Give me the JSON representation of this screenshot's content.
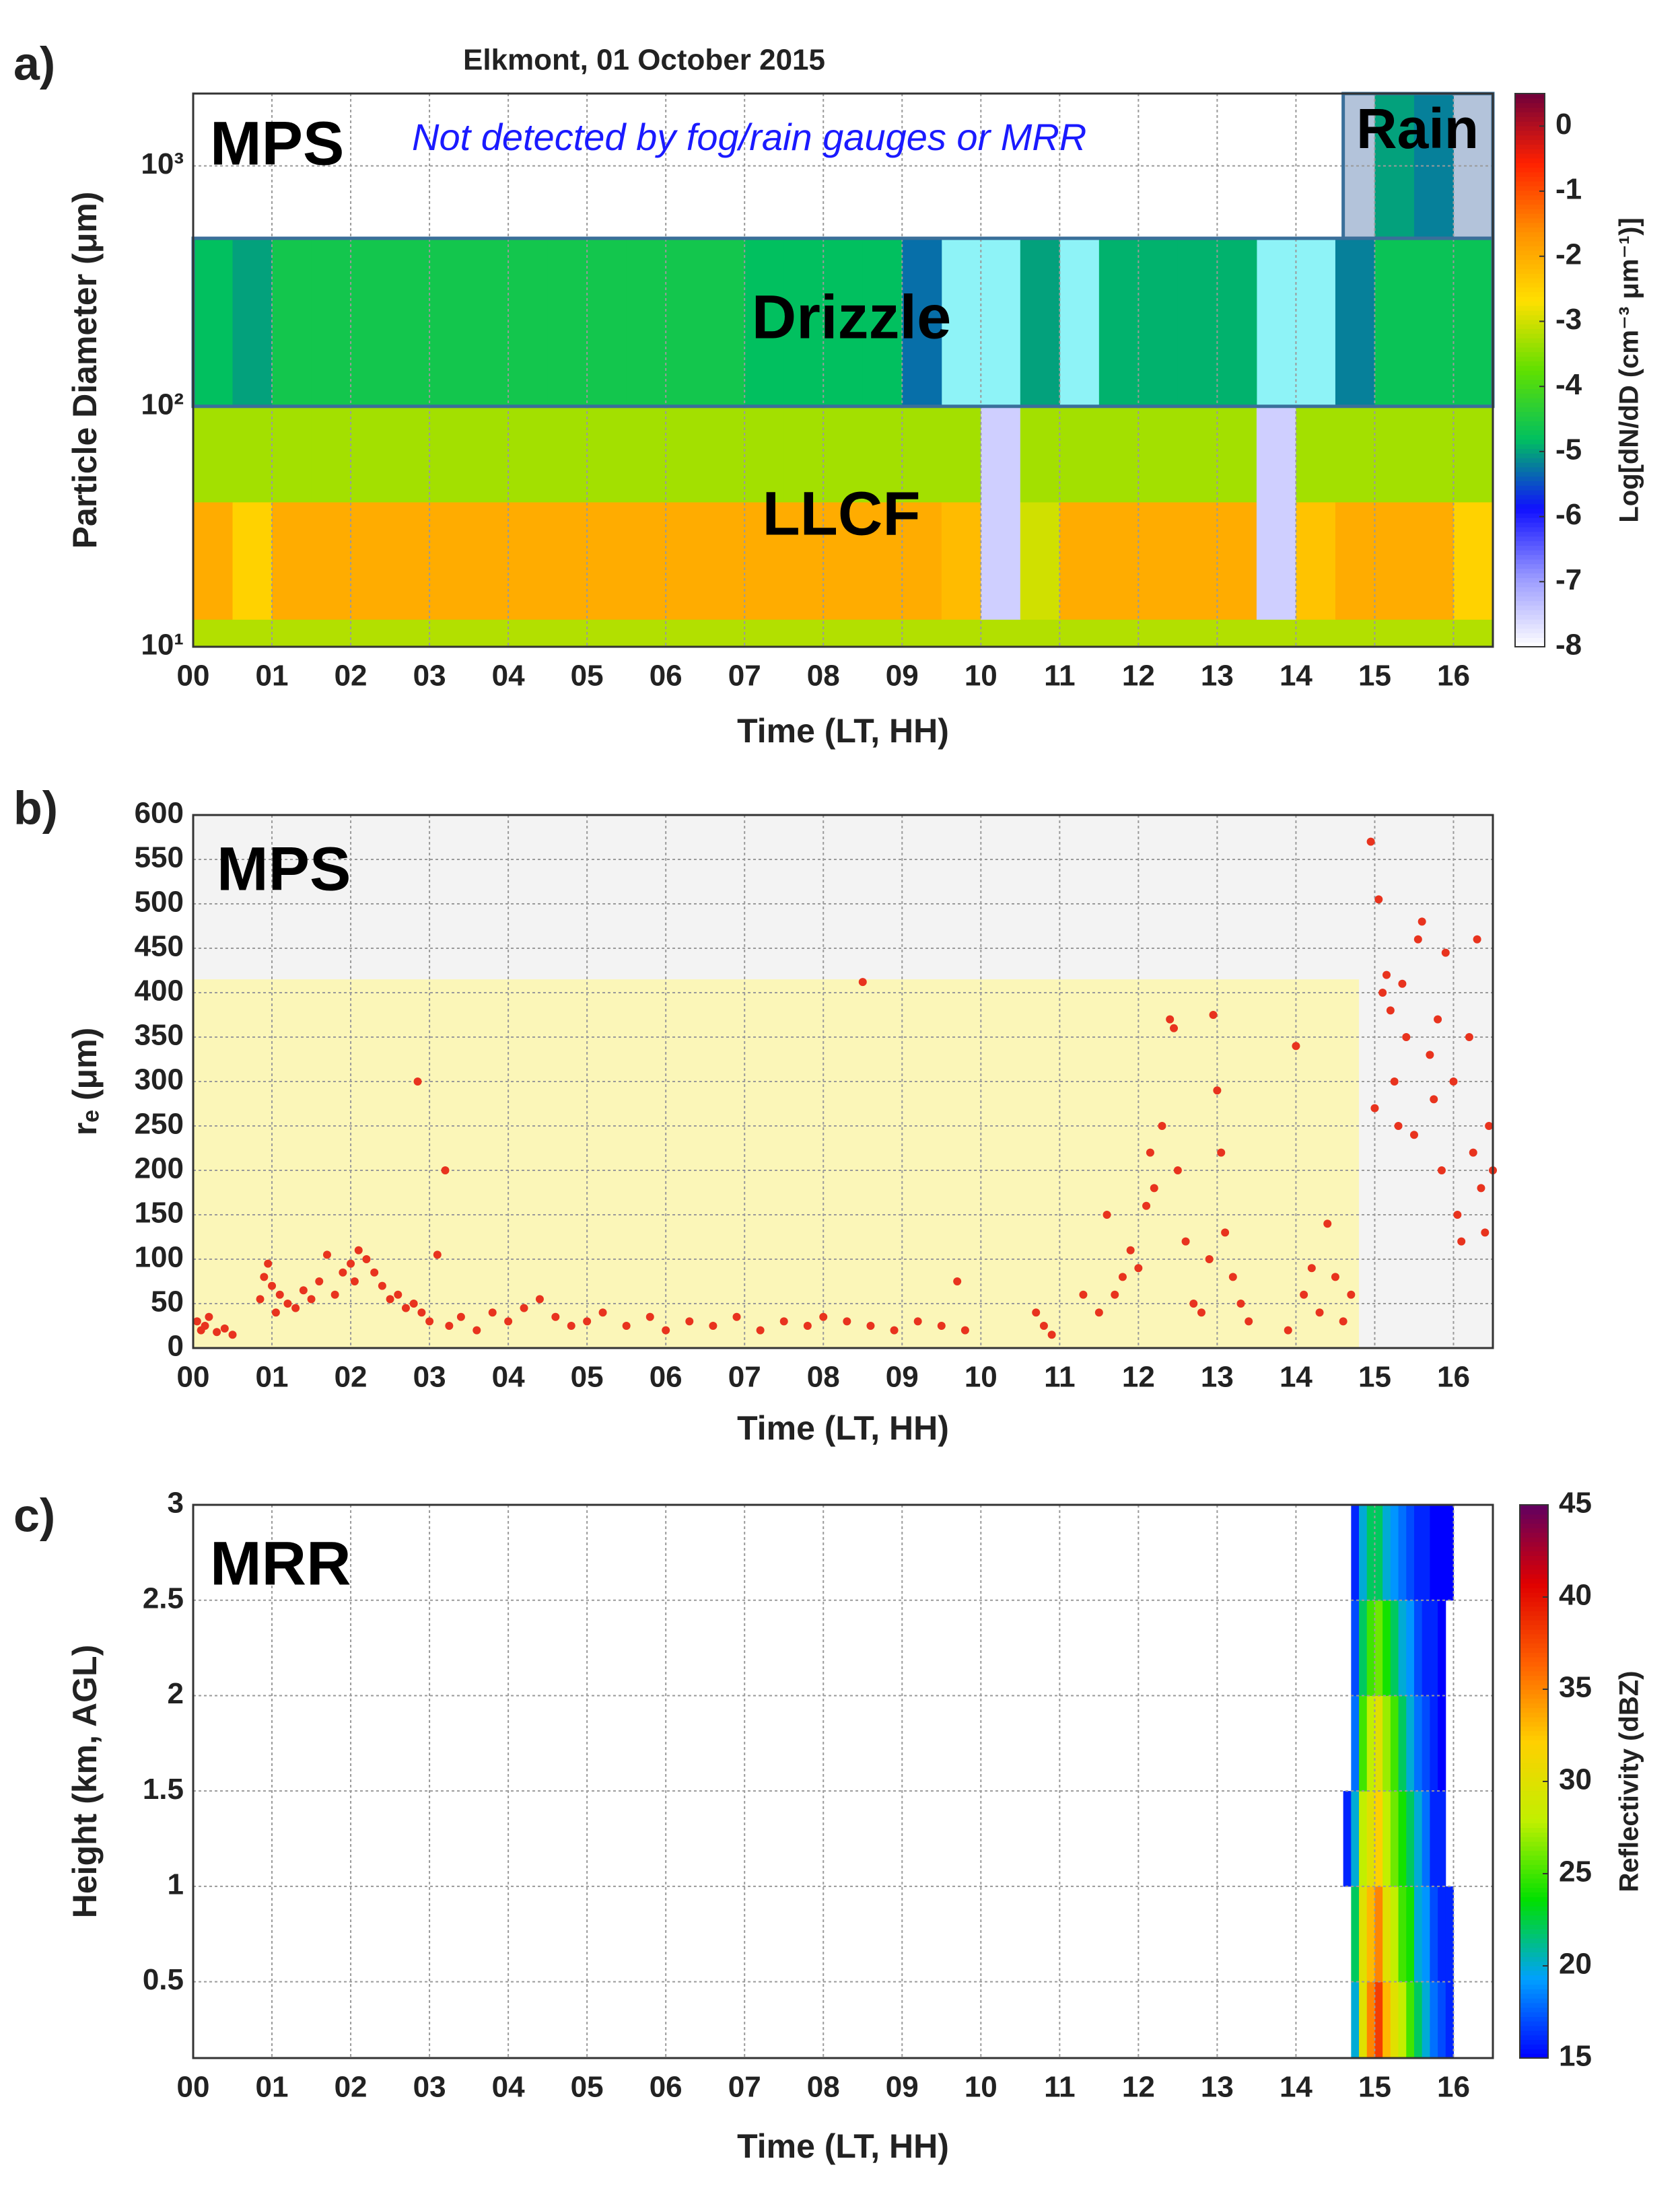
{
  "chart_data": [
    {
      "type": "heatmap",
      "title": "Elkmont, 01 October 2015",
      "panel_label": "a)",
      "ylabel": "Particle Diameter (μm)",
      "xlabel": "Time (LT, HH)",
      "annotations": [
        "MPS",
        "Not detected by fog/rain gauges or MRR",
        "Rain",
        "Drizzle",
        "LLCF"
      ],
      "xlim": [
        0,
        16.5
      ],
      "ylim": [
        10,
        2000
      ],
      "yscale": "log",
      "xticks": [
        {
          "value": 0,
          "label": "00"
        },
        {
          "value": 1,
          "label": "01"
        },
        {
          "value": 2,
          "label": "02"
        },
        {
          "value": 3,
          "label": "03"
        },
        {
          "value": 4,
          "label": "04"
        },
        {
          "value": 5,
          "label": "05"
        },
        {
          "value": 6,
          "label": "06"
        },
        {
          "value": 7,
          "label": "07"
        },
        {
          "value": 8,
          "label": "08"
        },
        {
          "value": 9,
          "label": "09"
        },
        10,
        11,
        12,
        13,
        14,
        15,
        16
      ],
      "yticks": [
        {
          "value": 10,
          "label": "10¹"
        },
        {
          "value": 100,
          "label": "10²"
        },
        {
          "value": 1000,
          "label": "10³"
        }
      ],
      "grid": true,
      "xbins": [
        0,
        0.5,
        1,
        1.5,
        2,
        2.5,
        3,
        3.5,
        4,
        4.5,
        5,
        5.5,
        6,
        6.5,
        7,
        7.5,
        8,
        8.5,
        9,
        9.5,
        10,
        10.5,
        11,
        11.5,
        12,
        12.5,
        13,
        13.5,
        14,
        14.5,
        15,
        15.5,
        16,
        16.5
      ],
      "ybins": [
        10,
        13,
        40,
        100,
        500,
        2000
      ],
      "values": [
        [
          -3.2,
          -3.2,
          -3.2,
          -3.2,
          -3.2,
          -3.2,
          -3.2,
          -3.2,
          -3.2,
          -3.2,
          -3.2,
          -3.2,
          -3.2,
          -3.2,
          -3.2,
          -3.2,
          -3.2,
          -3.2,
          -3.2,
          -3.2,
          -3.2,
          -3.2,
          -3.2,
          -3.2,
          -3.2,
          -3.2,
          -3.2,
          -3.2,
          -3.2,
          -3.2,
          -3.2,
          -3.2,
          -3.2
        ],
        [
          -2.0,
          -2.5,
          -2.0,
          -2.0,
          -2.0,
          -2.0,
          -2.0,
          -2.0,
          -2.0,
          -2.0,
          -2.0,
          -2.0,
          -2.0,
          -2.0,
          -2.0,
          -2.0,
          -2.0,
          -2.0,
          -2.0,
          -2.2,
          -7.5,
          -3.0,
          -2.0,
          -2.0,
          -2.0,
          -2.0,
          -2.0,
          -7.5,
          -2.3,
          -2.0,
          -2.0,
          -2.0,
          -2.5
        ],
        [
          -3.3,
          -3.3,
          -3.3,
          -3.3,
          -3.3,
          -3.3,
          -3.3,
          -3.3,
          -3.3,
          -3.3,
          -3.3,
          -3.3,
          -3.3,
          -3.3,
          -3.3,
          -3.3,
          -3.3,
          -3.3,
          -3.3,
          -3.3,
          -7.5,
          -3.3,
          -3.3,
          -3.3,
          -3.3,
          -3.3,
          -3.3,
          -7.5,
          -3.3,
          -3.3,
          -3.3,
          -3.3,
          -3.3
        ],
        [
          -4.8,
          -5.0,
          -4.6,
          -4.6,
          -4.6,
          -4.6,
          -4.6,
          -4.6,
          -4.6,
          -4.6,
          -4.6,
          -4.6,
          -4.6,
          -4.6,
          -4.8,
          -4.8,
          -4.8,
          -4.8,
          -5.3,
          null,
          null,
          -5.0,
          null,
          -4.9,
          -4.9,
          -4.9,
          -4.9,
          null,
          null,
          -5.2,
          -4.7,
          -4.7,
          -4.7
        ],
        [
          null,
          null,
          null,
          null,
          null,
          null,
          null,
          null,
          null,
          null,
          null,
          null,
          null,
          null,
          null,
          null,
          null,
          null,
          null,
          null,
          null,
          null,
          null,
          null,
          null,
          null,
          null,
          null,
          null,
          null,
          -5.0,
          -5.2,
          null
        ]
      ],
      "regions": [
        {
          "x": [
            0,
            16.5
          ],
          "y": [
            100,
            500
          ],
          "color": "#8ef3f7"
        },
        {
          "x": [
            14.6,
            16.5
          ],
          "y": [
            500,
            2000
          ],
          "color": "#b3c3da"
        }
      ],
      "colorbar": {
        "label": "Log[dN/dD (cm⁻³ μm⁻¹)]",
        "lim": [
          -8,
          0.5
        ],
        "ticks": [
          0,
          -1,
          -2,
          -3,
          -4,
          -5,
          -6,
          -7,
          -8
        ],
        "colors": [
          "#ffffff",
          "#9a9aff",
          "#1010ff",
          "#00c060",
          "#60e000",
          "#ffe000",
          "#ff9000",
          "#ff2000",
          "#70003a"
        ]
      }
    },
    {
      "type": "scatter",
      "panel_label": "b)",
      "ylabel": "rₑ (μm)",
      "xlabel": "Time (LT, HH)",
      "annotations": [
        "MPS"
      ],
      "xlim": [
        0,
        16.5
      ],
      "ylim": [
        0,
        600
      ],
      "xticks": [
        {
          "value": 0,
          "label": "00"
        },
        {
          "value": 1,
          "label": "01"
        },
        {
          "value": 2,
          "label": "02"
        },
        {
          "value": 3,
          "label": "03"
        },
        {
          "value": 4,
          "label": "04"
        },
        {
          "value": 5,
          "label": "05"
        },
        {
          "value": 6,
          "label": "06"
        },
        {
          "value": 7,
          "label": "07"
        },
        {
          "value": 8,
          "label": "08"
        },
        {
          "value": 9,
          "label": "09"
        },
        10,
        11,
        12,
        13,
        14,
        15,
        16
      ],
      "yticks": [
        0,
        50,
        100,
        150,
        200,
        250,
        300,
        350,
        400,
        450,
        500,
        550,
        600
      ],
      "grid": true,
      "color": "#e8331e",
      "regions": [
        {
          "x": [
            0,
            14.8
          ],
          "y": [
            0,
            415
          ],
          "color": "#fbf6b8"
        }
      ],
      "x": [
        0.05,
        0.1,
        0.15,
        0.2,
        0.3,
        0.4,
        0.5,
        0.85,
        0.9,
        0.95,
        1.0,
        1.05,
        1.1,
        1.2,
        1.3,
        1.4,
        1.5,
        1.6,
        1.7,
        1.8,
        1.9,
        2.0,
        2.05,
        2.1,
        2.2,
        2.3,
        2.4,
        2.5,
        2.6,
        2.7,
        2.8,
        2.85,
        2.9,
        3.0,
        3.1,
        3.2,
        3.25,
        3.4,
        3.6,
        3.8,
        4.0,
        4.2,
        4.4,
        4.6,
        4.8,
        5.0,
        5.2,
        5.5,
        5.8,
        6.0,
        6.3,
        6.6,
        6.9,
        7.2,
        7.5,
        7.8,
        8.0,
        8.3,
        8.5,
        8.6,
        8.9,
        9.2,
        9.5,
        9.7,
        9.8,
        10.7,
        10.8,
        10.9,
        11.3,
        11.5,
        11.6,
        11.7,
        11.8,
        11.9,
        12.0,
        12.1,
        12.15,
        12.2,
        12.3,
        12.4,
        12.45,
        12.5,
        12.6,
        12.7,
        12.8,
        12.9,
        12.95,
        13.0,
        13.05,
        13.1,
        13.2,
        13.3,
        13.4,
        13.9,
        14.0,
        14.1,
        14.2,
        14.3,
        14.4,
        14.5,
        14.6,
        14.7,
        14.95,
        15.0,
        15.05,
        15.1,
        15.15,
        15.2,
        15.25,
        15.3,
        15.35,
        15.4,
        15.5,
        15.55,
        15.6,
        15.7,
        15.75,
        15.8,
        15.85,
        15.9,
        16.0,
        16.05,
        16.1,
        16.2,
        16.25,
        16.3,
        16.35,
        16.4,
        16.45,
        16.5
      ],
      "values": [
        30,
        20,
        25,
        35,
        18,
        22,
        15,
        55,
        80,
        95,
        70,
        40,
        60,
        50,
        45,
        65,
        55,
        75,
        105,
        60,
        85,
        95,
        75,
        110,
        100,
        85,
        70,
        55,
        60,
        45,
        50,
        300,
        40,
        30,
        105,
        200,
        25,
        35,
        20,
        40,
        30,
        45,
        55,
        35,
        25,
        30,
        40,
        25,
        35,
        20,
        30,
        25,
        35,
        20,
        30,
        25,
        35,
        30,
        412,
        25,
        20,
        30,
        25,
        75,
        20,
        40,
        25,
        15,
        60,
        40,
        150,
        60,
        80,
        110,
        90,
        160,
        220,
        180,
        250,
        370,
        360,
        200,
        120,
        50,
        40,
        100,
        375,
        290,
        220,
        130,
        80,
        50,
        30,
        20,
        340,
        60,
        90,
        40,
        140,
        80,
        30,
        60,
        570,
        270,
        505,
        400,
        420,
        380,
        300,
        250,
        410,
        350,
        240,
        460,
        480,
        330,
        280,
        370,
        200,
        445,
        300,
        150,
        120,
        350,
        220,
        460,
        180,
        130,
        250,
        200
      ]
    },
    {
      "type": "heatmap",
      "panel_label": "c)",
      "ylabel": "Height (km, AGL)",
      "xlabel": "Time (LT, HH)",
      "annotations": [
        "MRR"
      ],
      "xlim": [
        0,
        16.5
      ],
      "ylim": [
        0.1,
        3
      ],
      "xticks": [
        {
          "value": 0,
          "label": "00"
        },
        {
          "value": 1,
          "label": "01"
        },
        {
          "value": 2,
          "label": "02"
        },
        {
          "value": 3,
          "label": "03"
        },
        {
          "value": 4,
          "label": "04"
        },
        {
          "value": 5,
          "label": "05"
        },
        {
          "value": 6,
          "label": "06"
        },
        {
          "value": 7,
          "label": "07"
        },
        {
          "value": 8,
          "label": "08"
        },
        {
          "value": 9,
          "label": "09"
        },
        10,
        11,
        12,
        13,
        14,
        15,
        16
      ],
      "yticks": [
        0.5,
        1,
        1.5,
        2,
        2.5,
        3
      ],
      "grid": true,
      "xbins": [
        14.6,
        14.7,
        14.8,
        14.9,
        15.0,
        15.1,
        15.2,
        15.3,
        15.4,
        15.5,
        15.6,
        15.7,
        15.8,
        15.9,
        16.0,
        16.1,
        16.2
      ],
      "ybins": [
        0.1,
        0.5,
        1,
        1.5,
        2,
        2.5,
        3
      ],
      "values": [
        [
          null,
          20,
          30,
          35,
          38,
          33,
          30,
          28,
          25,
          22,
          20,
          18,
          17,
          16,
          null,
          null
        ],
        [
          null,
          22,
          30,
          33,
          35,
          30,
          28,
          25,
          24,
          20,
          19,
          17,
          16,
          16,
          null,
          null
        ],
        [
          16,
          20,
          28,
          30,
          32,
          28,
          26,
          24,
          22,
          20,
          18,
          16,
          16,
          null,
          null,
          null
        ],
        [
          null,
          18,
          25,
          28,
          30,
          27,
          25,
          22,
          20,
          18,
          17,
          16,
          15,
          null,
          null,
          null
        ],
        [
          null,
          17,
          22,
          25,
          26,
          24,
          22,
          20,
          19,
          17,
          16,
          16,
          15,
          null,
          null,
          null
        ],
        [
          null,
          16,
          20,
          22,
          22,
          20,
          19,
          18,
          17,
          16,
          16,
          15,
          15,
          15,
          null,
          null
        ]
      ],
      "colorbar": {
        "label": "Reflectivity (dBZ)",
        "lim": [
          15,
          45
        ],
        "ticks": [
          15,
          20,
          25,
          30,
          35,
          40,
          45
        ],
        "colors": [
          "#0000ff",
          "#00a0ff",
          "#00e000",
          "#c0f000",
          "#ffd000",
          "#ff6000",
          "#e00000",
          "#600060"
        ]
      }
    }
  ]
}
